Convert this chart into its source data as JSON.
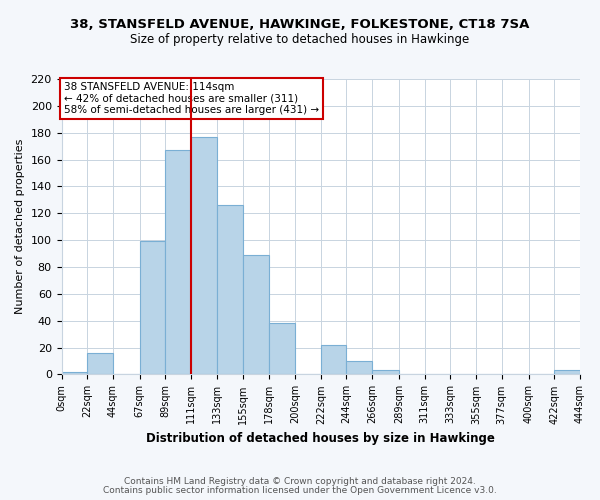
{
  "title": "38, STANSFELD AVENUE, HAWKINGE, FOLKESTONE, CT18 7SA",
  "subtitle": "Size of property relative to detached houses in Hawkinge",
  "xlabel": "Distribution of detached houses by size in Hawkinge",
  "ylabel": "Number of detached properties",
  "bin_edges": [
    0,
    22,
    44,
    67,
    89,
    111,
    133,
    155,
    178,
    200,
    222,
    244,
    266,
    289,
    311,
    333,
    355,
    377,
    400,
    422,
    444
  ],
  "bar_heights": [
    2,
    16,
    0,
    99,
    167,
    177,
    126,
    89,
    38,
    0,
    22,
    10,
    3,
    0,
    0,
    0,
    0,
    0,
    0,
    3
  ],
  "tick_labels": [
    "0sqm",
    "22sqm",
    "44sqm",
    "67sqm",
    "89sqm",
    "111sqm",
    "133sqm",
    "155sqm",
    "178sqm",
    "200sqm",
    "222sqm",
    "244sqm",
    "266sqm",
    "289sqm",
    "311sqm",
    "333sqm",
    "355sqm",
    "377sqm",
    "400sqm",
    "422sqm",
    "444sqm"
  ],
  "bar_color": "#b8d4e8",
  "bar_edge_color": "#7aafd4",
  "vline_x": 111,
  "vline_color": "#cc0000",
  "ylim": [
    0,
    220
  ],
  "yticks": [
    0,
    20,
    40,
    60,
    80,
    100,
    120,
    140,
    160,
    180,
    200,
    220
  ],
  "annotation_box_text": "38 STANSFELD AVENUE: 114sqm\n← 42% of detached houses are smaller (311)\n58% of semi-detached houses are larger (431) →",
  "footnote1": "Contains HM Land Registry data © Crown copyright and database right 2024.",
  "footnote2": "Contains public sector information licensed under the Open Government Licence v3.0.",
  "bg_color": "#f4f7fb",
  "plot_bg_color": "#ffffff",
  "grid_color": "#c8d4e0"
}
